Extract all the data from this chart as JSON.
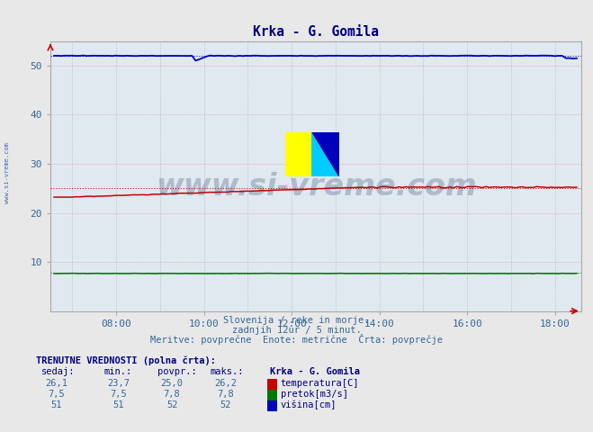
{
  "title": "Krka - G. Gomila",
  "title_color": "#000080",
  "fig_bg_color": "#e8e8e8",
  "plot_bg_color": "#e0e8f0",
  "grid_h_color": "#ff8888",
  "grid_v_color": "#9999cc",
  "xlabel_texts": [
    "Slovenija / reke in morje.",
    "zadnjih 12ur / 5 minut.",
    "Meritve: povprečne  Enote: metrične  Črta: povprečje"
  ],
  "xlabel_color": "#336699",
  "xmin": 6.5,
  "xmax": 18.6,
  "ymin": 0,
  "ymax": 55,
  "ytick_vals": [
    10,
    20,
    30,
    40,
    50
  ],
  "xtick_vals": [
    8,
    10,
    12,
    14,
    16,
    18
  ],
  "xtick_labels": [
    "08:00",
    "10:00",
    "12:00",
    "14:00",
    "16:00",
    "18:00"
  ],
  "tick_color": "#336699",
  "tick_fontsize": 8,
  "temp_color": "#cc0000",
  "pretok_color": "#007700",
  "visina_color": "#0000bb",
  "temp_avg": 25.0,
  "pretok_avg": 7.8,
  "visina_avg": 52.0,
  "watermark": "www.si-vreme.com",
  "watermark_color": "#1a3a5c",
  "watermark_alpha": 0.25,
  "watermark_fontsize": 24,
  "sidebar_text": "www.si-vreme.com",
  "sidebar_color": "#4466aa",
  "table_title": "TRENUTNE VREDNOSTI (polna črta):",
  "col_headers": [
    "sedaj:",
    "min.:",
    "povpr.:",
    "maks.:",
    "Krka - G. Gomila"
  ],
  "rows": [
    {
      "vals": [
        "26,1",
        "23,7",
        "25,0",
        "26,2"
      ],
      "color": "#cc0000",
      "label": "temperatura[C]"
    },
    {
      "vals": [
        "7,5",
        "7,5",
        "7,8",
        "7,8"
      ],
      "color": "#007700",
      "label": "pretok[m3/s]"
    },
    {
      "vals": [
        "51",
        "51",
        "52",
        "52"
      ],
      "color": "#0000bb",
      "label": "višina[cm]"
    }
  ],
  "table_header_color": "#000080",
  "table_col_color": "#000080",
  "table_data_color": "#336699",
  "border_color": "#aaaaaa",
  "arrow_color": "#cc0000"
}
